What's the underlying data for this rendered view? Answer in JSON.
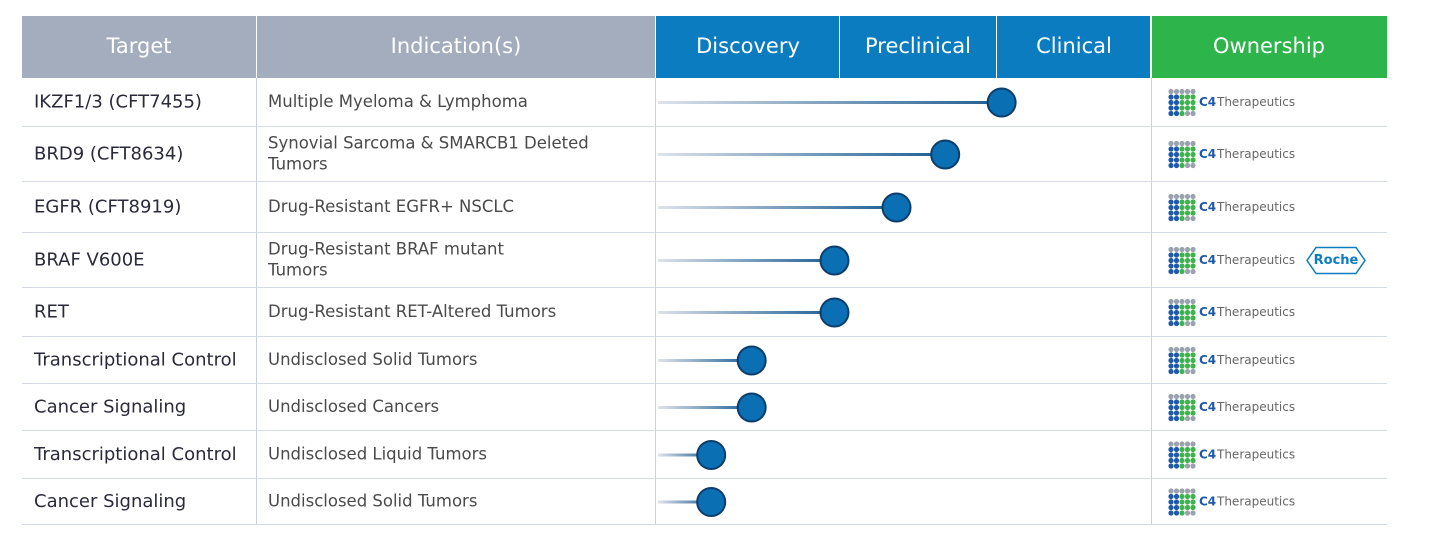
{
  "header": {
    "target": "Target",
    "indication": "Indication(s)",
    "stages": [
      "Discovery",
      "Preclinical",
      "Clinical"
    ],
    "ownership": "Ownership"
  },
  "rows": [
    {
      "target": "IKZF1/3 (CFT7455)",
      "indication": [
        "Multiple Myeloma & Lymphoma"
      ],
      "progress": 2.03,
      "owners": [
        {
          "mark": "C4",
          "name": "Therapeutics"
        }
      ]
    },
    {
      "target": "BRD9 (CFT8634)",
      "indication": [
        "Synovial Sarcoma & SMARCB1 Deleted",
        "Tumors"
      ],
      "progress": 1.67,
      "owners": [
        {
          "mark": "C4",
          "name": "Therapeutics"
        }
      ]
    },
    {
      "target": "EGFR (CFT8919)",
      "indication": [
        "Drug-Resistant EGFR+ NSCLC"
      ],
      "progress": 1.36,
      "owners": [
        {
          "mark": "C4",
          "name": "Therapeutics"
        }
      ]
    },
    {
      "target": "BRAF V600E",
      "indication": [
        "Drug-Resistant BRAF mutant",
        "Tumors"
      ],
      "progress": 0.97,
      "owners": [
        {
          "mark": "C4",
          "name": "Therapeutics"
        },
        {
          "name": "Roche"
        }
      ]
    },
    {
      "target": "RET",
      "indication": [
        "Drug-Resistant RET-Altered Tumors"
      ],
      "progress": 0.97,
      "owners": [
        {
          "mark": "C4",
          "name": "Therapeutics"
        }
      ]
    },
    {
      "target": "Transcriptional Control",
      "indication": [
        "Undisclosed Solid Tumors"
      ],
      "progress": 0.52,
      "owners": [
        {
          "mark": "C4",
          "name": "Therapeutics"
        }
      ]
    },
    {
      "target": "Cancer Signaling",
      "indication": [
        "Undisclosed Cancers"
      ],
      "progress": 0.52,
      "owners": [
        {
          "mark": "C4",
          "name": "Therapeutics"
        }
      ]
    },
    {
      "target": "Transcriptional Control",
      "indication": [
        "Undisclosed Liquid Tumors"
      ],
      "progress": 0.3,
      "owners": [
        {
          "mark": "C4",
          "name": "Therapeutics"
        }
      ]
    },
    {
      "target": "Cancer Signaling",
      "indication": [
        "Undisclosed Solid Tumors"
      ],
      "progress": 0.3,
      "owners": [
        {
          "mark": "C4",
          "name": "Therapeutics"
        }
      ]
    }
  ]
}
